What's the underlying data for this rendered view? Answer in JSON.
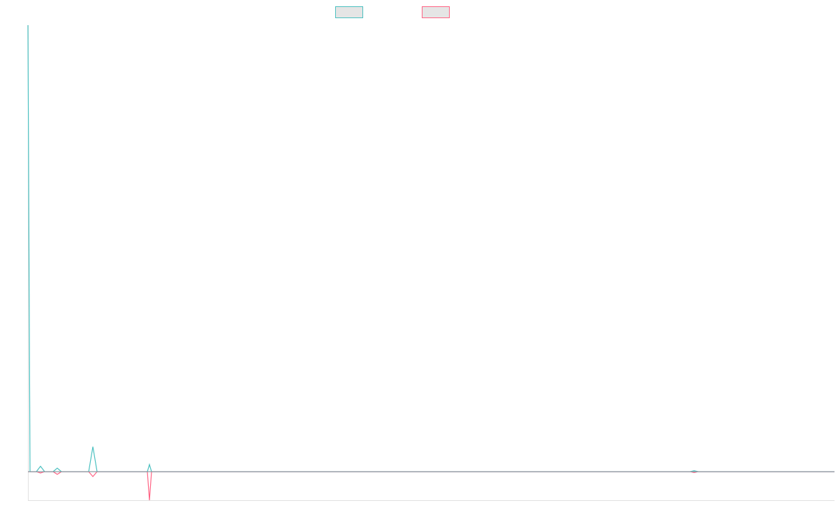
{
  "chart_data": {
    "type": "line",
    "title": "",
    "xlabel": "",
    "ylabel": "",
    "xlim": [
      0,
      385
    ],
    "ylim": [
      -6.4,
      100
    ],
    "grid": false,
    "legend_position": "top-center",
    "series": [
      {
        "color": "#4bc0c0",
        "x": [
          0,
          1,
          4,
          6,
          8,
          12,
          14,
          16,
          29,
          31,
          33,
          57,
          58,
          59,
          316,
          318,
          320,
          385
        ],
        "y": [
          100,
          0,
          0,
          1.2,
          0,
          0,
          0.8,
          0,
          0,
          5.6,
          0,
          0,
          1.6,
          0,
          0,
          0.2,
          0,
          0
        ]
      },
      {
        "color": "#ff6384",
        "x": [
          0,
          1,
          4,
          6,
          8,
          12,
          14,
          16,
          29,
          31,
          33,
          57,
          58,
          59,
          316,
          318,
          320,
          385
        ],
        "y": [
          0,
          0,
          0,
          -0.3,
          0,
          0,
          -0.6,
          0,
          0,
          -1.1,
          0,
          0,
          -6.4,
          0,
          0,
          -0.2,
          0,
          0
        ]
      }
    ]
  }
}
